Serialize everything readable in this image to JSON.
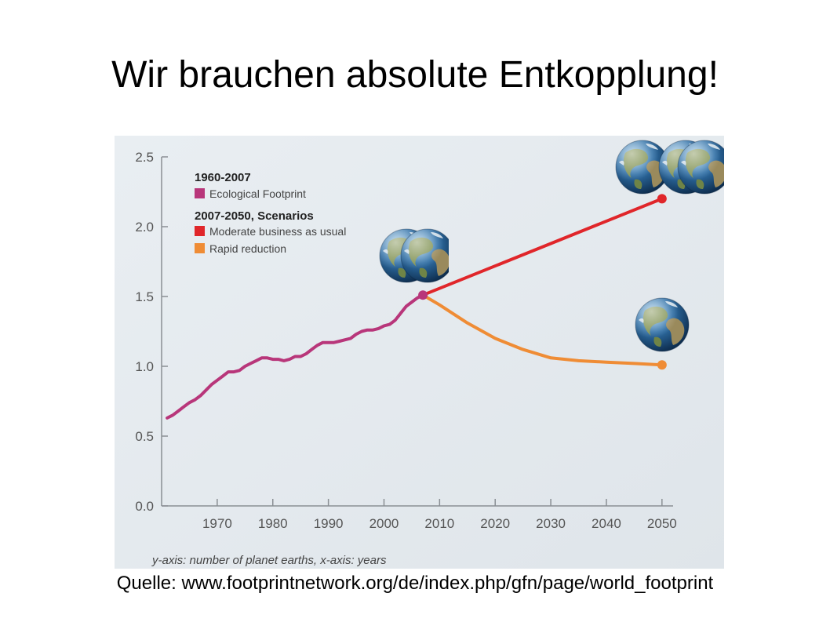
{
  "slide": {
    "title": "Wir brauchen absolute Entkopplung!",
    "source": "Quelle: www.footprintnetwork.org/de/index.php/gfn/page/world_footprint"
  },
  "colors": {
    "footprint": "#b8367a",
    "business_as_usual": "#e0262a",
    "rapid_reduction": "#ef8c35",
    "panel_background": "#e6ebef"
  },
  "icons": [
    "earth-globe-icon"
  ],
  "chart_data": {
    "type": "line",
    "caption": "y-axis: number of planet earths, x-axis: years",
    "xlim": [
      1960,
      2052
    ],
    "ylim": [
      0,
      2.5
    ],
    "x_ticks": [
      1970,
      1980,
      1990,
      2000,
      2010,
      2020,
      2030,
      2040,
      2050
    ],
    "y_ticks": [
      "0.0",
      "0.5",
      "1.0",
      "1.5",
      "2.0",
      "2.5"
    ],
    "legend": {
      "position": "top-left",
      "groups": [
        {
          "heading": "1960-2007",
          "entries": [
            "Ecological Footprint"
          ]
        },
        {
          "heading": "2007-2050, Scenarios",
          "entries": [
            "Moderate business as usual",
            "Rapid reduction"
          ]
        }
      ]
    },
    "series": [
      {
        "name": "Ecological Footprint",
        "x": [
          1961,
          1962,
          1963,
          1964,
          1965,
          1966,
          1967,
          1968,
          1969,
          1970,
          1971,
          1972,
          1973,
          1974,
          1975,
          1976,
          1977,
          1978,
          1979,
          1980,
          1981,
          1982,
          1983,
          1984,
          1985,
          1986,
          1987,
          1988,
          1989,
          1990,
          1991,
          1992,
          1993,
          1994,
          1995,
          1996,
          1997,
          1998,
          1999,
          2000,
          2001,
          2002,
          2003,
          2004,
          2005,
          2006,
          2007
        ],
        "y": [
          0.63,
          0.65,
          0.68,
          0.71,
          0.74,
          0.76,
          0.79,
          0.83,
          0.87,
          0.9,
          0.93,
          0.96,
          0.96,
          0.97,
          1.0,
          1.02,
          1.04,
          1.06,
          1.06,
          1.05,
          1.05,
          1.04,
          1.05,
          1.07,
          1.07,
          1.09,
          1.12,
          1.15,
          1.17,
          1.17,
          1.17,
          1.18,
          1.19,
          1.2,
          1.23,
          1.25,
          1.26,
          1.26,
          1.27,
          1.29,
          1.3,
          1.33,
          1.38,
          1.43,
          1.46,
          1.49,
          1.51
        ]
      },
      {
        "name": "Moderate business as usual",
        "x": [
          2007,
          2050
        ],
        "y": [
          1.51,
          2.2
        ]
      },
      {
        "name": "Rapid reduction",
        "x": [
          2007,
          2010,
          2015,
          2020,
          2025,
          2030,
          2035,
          2040,
          2045,
          2050
        ],
        "y": [
          1.51,
          1.44,
          1.31,
          1.2,
          1.12,
          1.06,
          1.04,
          1.03,
          1.02,
          1.01
        ]
      }
    ]
  }
}
